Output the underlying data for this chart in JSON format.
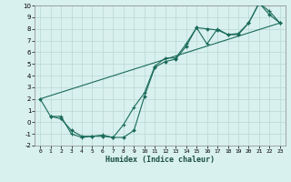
{
  "xlabel": "Humidex (Indice chaleur)",
  "bg_color": "#d8f0ee",
  "grid_color": "#b8d8d4",
  "line_color": "#1a6b5a",
  "marker_color": "#1a6b5a",
  "xlim": [
    -0.5,
    23.5
  ],
  "ylim": [
    -2,
    10
  ],
  "xticks": [
    0,
    1,
    2,
    3,
    4,
    5,
    6,
    7,
    8,
    9,
    10,
    11,
    12,
    13,
    14,
    15,
    16,
    17,
    18,
    19,
    20,
    21,
    22,
    23
  ],
  "yticks": [
    -2,
    -1,
    0,
    1,
    2,
    3,
    4,
    5,
    6,
    7,
    8,
    9,
    10
  ],
  "series1_x": [
    0,
    1,
    2,
    3,
    4,
    5,
    6,
    7,
    8,
    9,
    10,
    11,
    12,
    13,
    14,
    15,
    16,
    17,
    18,
    19,
    20,
    21,
    22,
    23
  ],
  "series1_y": [
    2.0,
    0.5,
    0.3,
    -0.7,
    -1.2,
    -1.2,
    -1.2,
    -1.3,
    -1.3,
    -0.7,
    2.2,
    4.7,
    5.2,
    5.4,
    6.5,
    8.1,
    8.0,
    7.9,
    7.5,
    7.5,
    8.5,
    10.2,
    9.2,
    8.5
  ],
  "series2_x": [
    1,
    2,
    3,
    4,
    5,
    6,
    7,
    8,
    9,
    10,
    11,
    12,
    13,
    14,
    15,
    16,
    17,
    18,
    19,
    20,
    21,
    22,
    23
  ],
  "series2_y": [
    0.5,
    0.5,
    -1.0,
    -1.3,
    -1.2,
    -1.1,
    -1.3,
    -0.2,
    1.3,
    2.5,
    4.8,
    5.5,
    5.5,
    6.7,
    8.1,
    6.7,
    8.0,
    7.5,
    7.6,
    8.5,
    10.2,
    9.5,
    8.5
  ],
  "series3_x": [
    0,
    23
  ],
  "series3_y": [
    2.0,
    8.5
  ]
}
